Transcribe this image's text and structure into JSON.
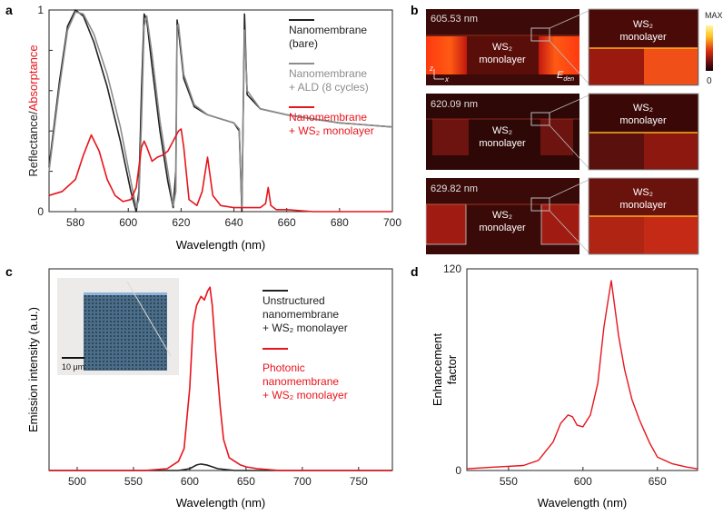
{
  "panels": {
    "a": {
      "letter": "a",
      "ylabel_part1": "Reflectance/",
      "ylabel_part2": "Absorptance",
      "xlabel": "Wavelength (nm)",
      "xticks": [
        580,
        600,
        620,
        640,
        660,
        680,
        700
      ],
      "yticks": [
        0,
        0.2,
        0.4,
        0.6,
        0.8,
        1
      ],
      "yticklabels": [
        "0",
        "",
        "",
        "",
        "",
        "1"
      ],
      "legend": [
        {
          "line1": "Nanomembrane",
          "line2": "(bare)",
          "color": "#222222"
        },
        {
          "line1": "Nanomembrane",
          "line2": "+ ALD (8 cycles)",
          "color": "#8c8c8c"
        },
        {
          "line1": "Nanomembrane",
          "line2": "+ WS₂ monolayer",
          "color": "#e8141c"
        }
      ]
    },
    "b": {
      "letter": "b",
      "colorbar_max": "MAX",
      "colorbar_min": "0",
      "field_symbol": "E",
      "field_subscript": "den",
      "axis_z": "z",
      "axis_x": "x",
      "rows": [
        {
          "wavelength": "605.53 nm",
          "label1": "WS₂",
          "label2": "monolayer"
        },
        {
          "wavelength": "620.09 nm",
          "label1": "WS₂",
          "label2": "monolayer"
        },
        {
          "wavelength": "629.82 nm",
          "label1": "WS₂",
          "label2": "monolayer"
        }
      ]
    },
    "c": {
      "letter": "c",
      "ylabel": "Emission intensity (a.u.)",
      "xlabel": "Wavelength (nm)",
      "xticks": [
        500,
        550,
        600,
        650,
        700,
        750
      ],
      "scalebar": "10 μm",
      "legend": [
        {
          "line1": "Unstructured",
          "line2": "nanomembrane",
          "line3": "+ WS₂ monolayer",
          "color": "#222222"
        },
        {
          "line1": "Photonic",
          "line2": "nanomembrane",
          "line3": "+ WS₂ monolayer",
          "color": "#e8141c"
        }
      ]
    },
    "d": {
      "letter": "d",
      "ylabel1": "Enhancement",
      "ylabel2": "factor",
      "xlabel": "Wavelength (nm)",
      "xticks": [
        550,
        600,
        650
      ],
      "yticks": [
        0,
        120
      ],
      "yticklabels": [
        "0",
        "120"
      ]
    }
  },
  "chart_data": [
    {
      "type": "line",
      "panel": "a",
      "xlabel": "Wavelength (nm)",
      "ylabel": "Reflectance/Absorptance",
      "xlim": [
        570,
        700
      ],
      "ylim": [
        0,
        1
      ],
      "series": [
        {
          "name": "Nanomembrane (bare)",
          "color": "#222222",
          "x": [
            570,
            574,
            577,
            580,
            583,
            587,
            592,
            597,
            601,
            603,
            604,
            605,
            606,
            607,
            609,
            612,
            615,
            617,
            618,
            618.5,
            619,
            621,
            625,
            630,
            635,
            640,
            642,
            643,
            644,
            645,
            650,
            660,
            670,
            680,
            690,
            700
          ],
          "y": [
            0.22,
            0.65,
            0.92,
            1.0,
            0.97,
            0.84,
            0.62,
            0.35,
            0.1,
            0.0,
            0.1,
            0.6,
            0.98,
            0.95,
            0.72,
            0.4,
            0.15,
            0.02,
            0.2,
            0.95,
            0.9,
            0.66,
            0.52,
            0.48,
            0.46,
            0.44,
            0.4,
            0.0,
            0.98,
            0.58,
            0.51,
            0.48,
            0.46,
            0.44,
            0.43,
            0.42
          ]
        },
        {
          "name": "Nanomembrane + ALD (8 cycles)",
          "color": "#8c8c8c",
          "x": [
            570,
            574,
            577,
            580,
            583,
            587,
            592,
            597,
            601,
            603,
            604,
            605,
            606,
            607,
            609,
            612,
            615,
            617,
            618,
            618.5,
            619,
            621,
            625,
            630,
            635,
            640,
            642,
            643,
            644,
            645,
            650,
            660,
            670,
            680,
            690,
            700
          ],
          "y": [
            0.2,
            0.62,
            0.9,
            0.99,
            0.98,
            0.88,
            0.68,
            0.42,
            0.15,
            0.02,
            0.06,
            0.45,
            0.92,
            0.97,
            0.78,
            0.45,
            0.2,
            0.03,
            0.1,
            0.92,
            0.93,
            0.68,
            0.53,
            0.48,
            0.46,
            0.44,
            0.41,
            0.02,
            0.9,
            0.6,
            0.51,
            0.48,
            0.46,
            0.44,
            0.43,
            0.42
          ]
        },
        {
          "name": "Nanomembrane + WS₂ monolayer",
          "color": "#e8141c",
          "x": [
            570,
            575,
            580,
            583,
            586,
            589,
            592,
            595,
            598,
            601,
            603,
            605,
            606,
            607,
            609,
            611,
            613,
            615,
            617,
            619,
            620,
            621,
            623,
            626,
            628,
            630,
            632,
            635,
            640,
            645,
            650,
            652,
            653,
            654,
            656,
            660,
            670,
            680,
            690,
            700
          ],
          "y": [
            0.08,
            0.1,
            0.16,
            0.28,
            0.38,
            0.3,
            0.16,
            0.08,
            0.05,
            0.06,
            0.12,
            0.32,
            0.35,
            0.32,
            0.25,
            0.27,
            0.28,
            0.3,
            0.35,
            0.4,
            0.41,
            0.32,
            0.06,
            0.03,
            0.1,
            0.27,
            0.08,
            0.03,
            0.02,
            0.02,
            0.02,
            0.04,
            0.12,
            0.03,
            0.01,
            0.01,
            0.0,
            0.0,
            0.0,
            0.0
          ]
        }
      ]
    },
    {
      "type": "line",
      "panel": "c",
      "xlabel": "Wavelength (nm)",
      "ylabel": "Emission intensity (a.u.)",
      "xlim": [
        475,
        780
      ],
      "ylim": [
        0,
        1.1
      ],
      "series": [
        {
          "name": "Unstructured nanomembrane + WS₂ monolayer",
          "color": "#222222",
          "x": [
            475,
            560,
            590,
            600,
            606,
            610,
            615,
            625,
            640,
            680,
            780
          ],
          "y": [
            0.0,
            0.0,
            0.0,
            0.01,
            0.03,
            0.035,
            0.03,
            0.01,
            0.0,
            0.0,
            0.0
          ]
        },
        {
          "name": "Photonic nanomembrane + WS₂ monolayer",
          "color": "#e8141c",
          "x": [
            475,
            560,
            580,
            590,
            595,
            600,
            603,
            606,
            610,
            613,
            616,
            618,
            620,
            623,
            627,
            630,
            635,
            640,
            645,
            650,
            660,
            680,
            720,
            780
          ],
          "y": [
            0.0,
            0.0,
            0.01,
            0.05,
            0.12,
            0.45,
            0.8,
            0.9,
            0.95,
            0.93,
            0.98,
            1.0,
            0.9,
            0.65,
            0.35,
            0.17,
            0.07,
            0.05,
            0.03,
            0.02,
            0.01,
            0.0,
            0.0,
            0.0
          ]
        }
      ]
    },
    {
      "type": "line",
      "panel": "d",
      "xlabel": "Wavelength (nm)",
      "ylabel": "Enhancement factor",
      "xlim": [
        522,
        677
      ],
      "ylim": [
        0,
        120
      ],
      "series": [
        {
          "name": "",
          "color": "#e8141c",
          "x": [
            522,
            540,
            560,
            570,
            580,
            585,
            590,
            593,
            596,
            600,
            605,
            610,
            614,
            617,
            619,
            621,
            624,
            628,
            633,
            638,
            642,
            645,
            650,
            660,
            670,
            677
          ],
          "y": [
            1,
            2,
            3,
            6,
            17,
            28,
            33,
            32,
            27,
            26,
            33,
            52,
            85,
            102,
            113,
            100,
            80,
            60,
            42,
            30,
            22,
            16,
            8,
            4,
            2,
            1
          ]
        }
      ]
    }
  ]
}
